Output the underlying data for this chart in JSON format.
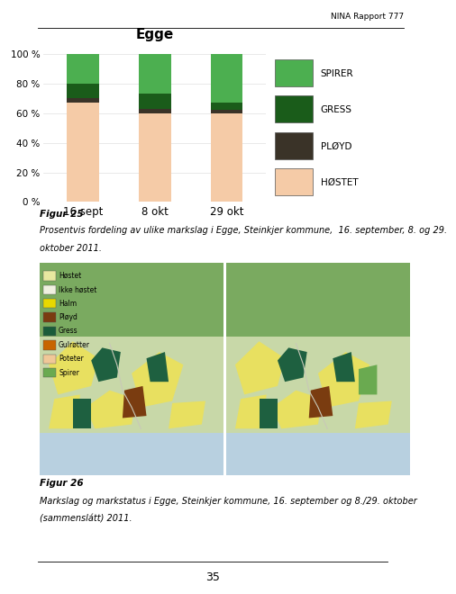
{
  "title": "Egge",
  "categories": [
    "16 sept",
    "8 okt",
    "29 okt"
  ],
  "series": {
    "HØSTET": [
      67,
      60,
      60
    ],
    "PLØYD": [
      3,
      3,
      2
    ],
    "GRESS": [
      10,
      10,
      5
    ],
    "SPIRER": [
      20,
      27,
      33
    ]
  },
  "colors": {
    "HØSTET": "#f5cba7",
    "PLØYD": "#3a3328",
    "GRESS": "#1a5c1a",
    "SPIRER": "#4caf50"
  },
  "legend_order": [
    "SPIRER",
    "GRESS",
    "PLØYD",
    "HØSTET"
  ],
  "yticks": [
    0,
    20,
    40,
    60,
    80,
    100
  ],
  "ytick_labels": [
    "0 %",
    "20 %",
    "40 %",
    "60 %",
    "80 %",
    "100 %"
  ],
  "header_text": "NINA Rapport 777",
  "fig25_bold": "Figur 25",
  "fig25_text_line1": "Prosentvis fordeling av ulike markslag i Egge, Steinkjer kommune,  16. september, 8. og 29.",
  "fig25_text_line2": "oktober 2011.",
  "fig26_bold": "Figur 26",
  "fig26_text_line1": "Markslag og markstatus i Egge, Steinkjer kommune, 16. september og 8./29. oktober",
  "fig26_text_line2": "(sammenslátt) 2011.",
  "page_number": "35",
  "bar_width": 0.45,
  "chart_bg": "#ffffff",
  "page_bg": "#ffffff",
  "map_legend_items": [
    [
      "Høstet",
      "#e8e8a0"
    ],
    [
      "Ikke høstet",
      "#f0f0e0"
    ],
    [
      "Halm",
      "#e8d800"
    ],
    [
      "Pløyd",
      "#7a3c10"
    ],
    [
      "Gress",
      "#1a5c3a"
    ],
    [
      "Gulrøtter",
      "#c86400"
    ],
    [
      "Poteter",
      "#f0c898"
    ],
    [
      "Spirer",
      "#6aaa50"
    ]
  ],
  "map_bg_color": "#c8dcc8",
  "map_water_color": "#b0ccdc",
  "map_yellow_color": "#e8e060",
  "map_dark_green": "#1a5c3a",
  "map_brown": "#7a3c10",
  "map_light_green": "#6aaa50"
}
